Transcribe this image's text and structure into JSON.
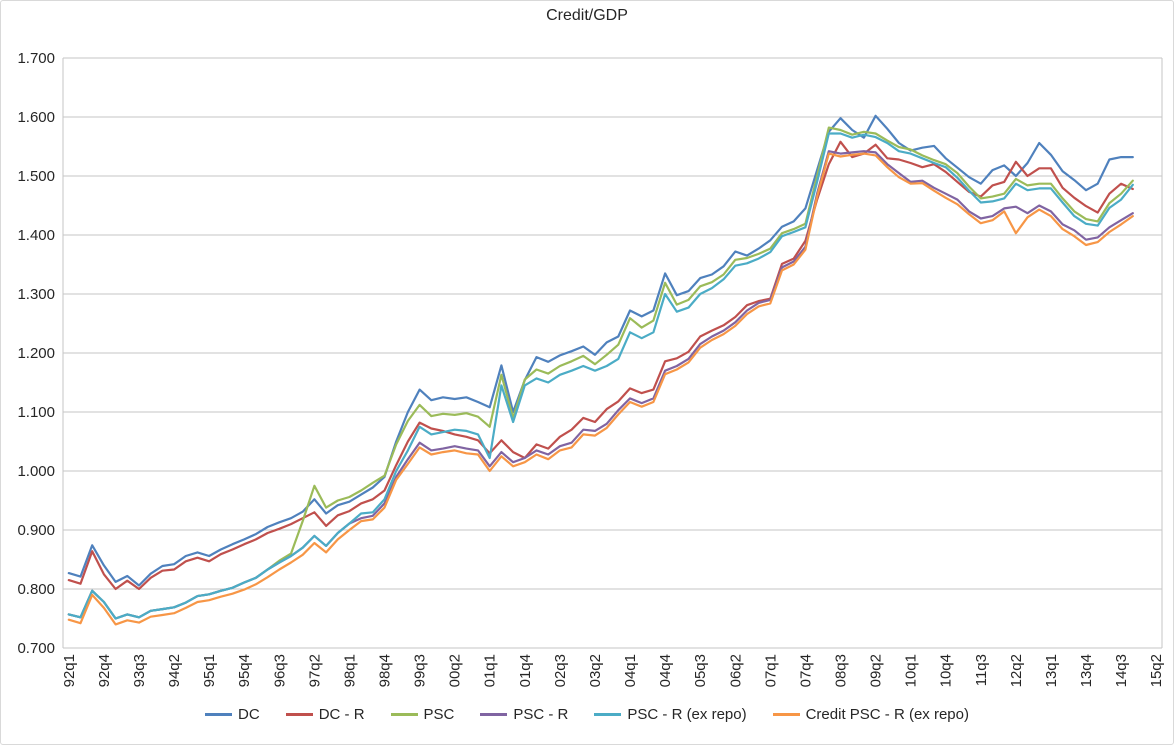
{
  "chart_data": {
    "type": "line",
    "title": "Credit/GDP",
    "xlabel": "",
    "ylabel": "",
    "ylim": [
      0.7,
      1.7
    ],
    "y_tick_step": 0.1,
    "grid": "horizontal",
    "legend_position": "bottom",
    "y_tick_labels": [
      "1.700",
      "1.600",
      "1.500",
      "1.400",
      "1.300",
      "1.200",
      "1.100",
      "1.000",
      "0.900",
      "0.800",
      "0.700"
    ],
    "x_tick_labels": [
      "92q1",
      "92q4",
      "93q3",
      "94q2",
      "95q1",
      "95q4",
      "96q3",
      "97q2",
      "98q1",
      "98q4",
      "99q3",
      "00q2",
      "01q1",
      "01q4",
      "02q3",
      "03q2",
      "04q1",
      "04q4",
      "05q3",
      "06q2",
      "07q1",
      "07q4",
      "08q3",
      "09q2",
      "10q1",
      "10q4",
      "11q3",
      "12q2",
      "13q1",
      "13q4",
      "14q3",
      "15q2"
    ],
    "categories": [
      "92q1",
      "92q2",
      "92q3",
      "92q4",
      "93q1",
      "93q2",
      "93q3",
      "93q4",
      "94q1",
      "94q2",
      "94q3",
      "94q4",
      "95q1",
      "95q2",
      "95q3",
      "95q4",
      "96q1",
      "96q2",
      "96q3",
      "96q4",
      "97q1",
      "97q2",
      "97q3",
      "97q4",
      "98q1",
      "98q2",
      "98q3",
      "98q4",
      "99q1",
      "99q2",
      "99q3",
      "99q4",
      "00q1",
      "00q2",
      "00q3",
      "00q4",
      "01q1",
      "01q2",
      "01q3",
      "01q4",
      "02q1",
      "02q2",
      "02q3",
      "02q4",
      "03q1",
      "03q2",
      "03q3",
      "03q4",
      "04q1",
      "04q2",
      "04q3",
      "04q4",
      "05q1",
      "05q2",
      "05q3",
      "05q4",
      "06q1",
      "06q2",
      "06q3",
      "06q4",
      "07q1",
      "07q2",
      "07q3",
      "07q4",
      "08q1",
      "08q2",
      "08q3",
      "08q4",
      "09q1",
      "09q2",
      "09q3",
      "09q4",
      "10q1",
      "10q2",
      "10q3",
      "10q4",
      "11q1",
      "11q2",
      "11q3",
      "11q4",
      "12q1",
      "12q2",
      "12q3",
      "12q4",
      "13q1",
      "13q2",
      "13q3",
      "13q4",
      "14q1",
      "14q2",
      "14q3",
      "14q4",
      "15q1",
      "15q2"
    ],
    "series": [
      {
        "name": "DC",
        "color": "#4F81BD",
        "values": [
          0.827,
          0.821,
          0.874,
          0.84,
          0.812,
          0.822,
          0.806,
          0.826,
          0.839,
          0.842,
          0.856,
          0.862,
          0.856,
          0.867,
          0.876,
          0.884,
          0.893,
          0.905,
          0.913,
          0.92,
          0.931,
          0.952,
          0.928,
          0.942,
          0.948,
          0.96,
          0.972,
          0.99,
          1.05,
          1.1,
          1.138,
          1.12,
          1.125,
          1.122,
          1.125,
          1.117,
          1.108,
          1.179,
          1.1,
          1.154,
          1.193,
          1.185,
          1.196,
          1.203,
          1.211,
          1.197,
          1.218,
          1.228,
          1.272,
          1.262,
          1.272,
          1.335,
          1.298,
          1.305,
          1.327,
          1.333,
          1.347,
          1.372,
          1.365,
          1.377,
          1.391,
          1.414,
          1.423,
          1.445,
          1.51,
          1.575,
          1.598,
          1.578,
          1.565,
          1.602,
          1.58,
          1.556,
          1.543,
          1.548,
          1.551,
          1.53,
          1.514,
          1.498,
          1.487,
          1.51,
          1.518,
          1.5,
          1.522,
          1.556,
          1.536,
          1.508,
          1.493,
          1.476,
          1.487,
          1.528,
          1.532,
          1.532,
          null,
          null
        ]
      },
      {
        "name": "DC - R",
        "color": "#C0504D",
        "values": [
          0.815,
          0.809,
          0.864,
          0.825,
          0.8,
          0.814,
          0.8,
          0.819,
          0.831,
          0.833,
          0.847,
          0.853,
          0.847,
          0.859,
          0.867,
          0.876,
          0.884,
          0.895,
          0.902,
          0.91,
          0.92,
          0.93,
          0.907,
          0.925,
          0.932,
          0.945,
          0.952,
          0.967,
          1.01,
          1.05,
          1.082,
          1.072,
          1.068,
          1.062,
          1.058,
          1.052,
          1.03,
          1.052,
          1.032,
          1.022,
          1.045,
          1.038,
          1.058,
          1.07,
          1.09,
          1.083,
          1.105,
          1.118,
          1.14,
          1.132,
          1.138,
          1.186,
          1.191,
          1.202,
          1.228,
          1.238,
          1.247,
          1.261,
          1.281,
          1.288,
          1.292,
          1.351,
          1.36,
          1.39,
          1.46,
          1.52,
          1.558,
          1.532,
          1.538,
          1.553,
          1.53,
          1.528,
          1.522,
          1.515,
          1.52,
          1.507,
          1.49,
          1.473,
          1.465,
          1.484,
          1.49,
          1.524,
          1.5,
          1.513,
          1.513,
          1.48,
          1.463,
          1.449,
          1.438,
          1.47,
          1.487,
          1.478,
          null,
          null
        ]
      },
      {
        "name": "PSC",
        "color": "#9BBB59",
        "values": [
          0.757,
          0.752,
          0.797,
          0.778,
          0.75,
          0.757,
          0.752,
          0.763,
          0.766,
          0.769,
          0.777,
          0.788,
          0.791,
          0.797,
          0.802,
          0.811,
          0.819,
          0.833,
          0.848,
          0.86,
          0.915,
          0.975,
          0.938,
          0.95,
          0.956,
          0.967,
          0.98,
          0.992,
          1.045,
          1.085,
          1.112,
          1.093,
          1.097,
          1.095,
          1.098,
          1.092,
          1.075,
          1.163,
          1.09,
          1.155,
          1.172,
          1.165,
          1.178,
          1.186,
          1.195,
          1.181,
          1.197,
          1.214,
          1.259,
          1.243,
          1.255,
          1.319,
          1.282,
          1.29,
          1.313,
          1.32,
          1.333,
          1.358,
          1.361,
          1.368,
          1.377,
          1.403,
          1.41,
          1.419,
          1.5,
          1.582,
          1.578,
          1.57,
          1.575,
          1.572,
          1.56,
          1.549,
          1.545,
          1.535,
          1.527,
          1.52,
          1.505,
          1.482,
          1.462,
          1.465,
          1.47,
          1.495,
          1.484,
          1.487,
          1.487,
          1.462,
          1.44,
          1.427,
          1.423,
          1.454,
          1.47,
          1.492,
          null,
          null
        ]
      },
      {
        "name": "PSC - R",
        "color": "#8064A2",
        "values": [
          0.757,
          0.752,
          0.797,
          0.778,
          0.75,
          0.757,
          0.752,
          0.763,
          0.766,
          0.769,
          0.777,
          0.788,
          0.791,
          0.797,
          0.802,
          0.811,
          0.819,
          0.833,
          0.845,
          0.856,
          0.87,
          0.89,
          0.873,
          0.895,
          0.911,
          0.92,
          0.924,
          0.945,
          0.99,
          1.02,
          1.048,
          1.035,
          1.038,
          1.042,
          1.038,
          1.035,
          1.008,
          1.032,
          1.015,
          1.022,
          1.035,
          1.028,
          1.042,
          1.048,
          1.07,
          1.068,
          1.08,
          1.103,
          1.123,
          1.115,
          1.123,
          1.17,
          1.178,
          1.19,
          1.215,
          1.228,
          1.238,
          1.252,
          1.272,
          1.285,
          1.29,
          1.345,
          1.355,
          1.38,
          1.47,
          1.542,
          1.538,
          1.54,
          1.542,
          1.54,
          1.52,
          1.505,
          1.49,
          1.492,
          1.48,
          1.47,
          1.46,
          1.44,
          1.428,
          1.432,
          1.445,
          1.448,
          1.437,
          1.45,
          1.44,
          1.418,
          1.408,
          1.392,
          1.396,
          1.413,
          1.425,
          1.437,
          null,
          null
        ]
      },
      {
        "name": "PSC - R (ex repo)",
        "color": "#4BACC6",
        "values": [
          0.757,
          0.752,
          0.797,
          0.778,
          0.75,
          0.757,
          0.752,
          0.763,
          0.766,
          0.769,
          0.777,
          0.788,
          0.791,
          0.797,
          0.802,
          0.811,
          0.819,
          0.833,
          0.845,
          0.856,
          0.87,
          0.89,
          0.873,
          0.895,
          0.911,
          0.928,
          0.93,
          0.952,
          1.0,
          1.035,
          1.075,
          1.062,
          1.066,
          1.07,
          1.068,
          1.062,
          1.022,
          1.145,
          1.083,
          1.145,
          1.157,
          1.15,
          1.163,
          1.17,
          1.178,
          1.17,
          1.178,
          1.19,
          1.235,
          1.225,
          1.235,
          1.3,
          1.27,
          1.277,
          1.3,
          1.31,
          1.325,
          1.348,
          1.352,
          1.36,
          1.371,
          1.398,
          1.405,
          1.413,
          1.49,
          1.572,
          1.572,
          1.565,
          1.57,
          1.566,
          1.556,
          1.542,
          1.538,
          1.53,
          1.522,
          1.515,
          1.497,
          1.475,
          1.455,
          1.457,
          1.462,
          1.487,
          1.476,
          1.479,
          1.479,
          1.455,
          1.432,
          1.419,
          1.416,
          1.446,
          1.46,
          1.485,
          null,
          null
        ]
      },
      {
        "name": "Credit PSC - R (ex repo)",
        "color": "#F79646",
        "values": [
          0.748,
          0.742,
          0.79,
          0.768,
          0.74,
          0.747,
          0.743,
          0.753,
          0.756,
          0.759,
          0.768,
          0.778,
          0.781,
          0.787,
          0.792,
          0.799,
          0.808,
          0.82,
          0.833,
          0.845,
          0.858,
          0.878,
          0.862,
          0.884,
          0.9,
          0.915,
          0.918,
          0.938,
          0.985,
          1.012,
          1.04,
          1.028,
          1.032,
          1.035,
          1.03,
          1.028,
          1.0,
          1.025,
          1.008,
          1.015,
          1.028,
          1.02,
          1.035,
          1.04,
          1.062,
          1.06,
          1.073,
          1.096,
          1.117,
          1.109,
          1.117,
          1.164,
          1.172,
          1.184,
          1.209,
          1.222,
          1.232,
          1.246,
          1.266,
          1.279,
          1.284,
          1.34,
          1.35,
          1.375,
          1.465,
          1.538,
          1.533,
          1.536,
          1.538,
          1.535,
          1.515,
          1.498,
          1.487,
          1.488,
          1.475,
          1.463,
          1.452,
          1.435,
          1.42,
          1.425,
          1.44,
          1.403,
          1.43,
          1.443,
          1.432,
          1.41,
          1.398,
          1.383,
          1.388,
          1.405,
          1.418,
          1.432,
          null,
          null
        ]
      }
    ]
  },
  "style": {
    "gridline_color": "#C6C6C6",
    "axis_text_color": "#262626",
    "background_color": "#FFFFFF"
  }
}
